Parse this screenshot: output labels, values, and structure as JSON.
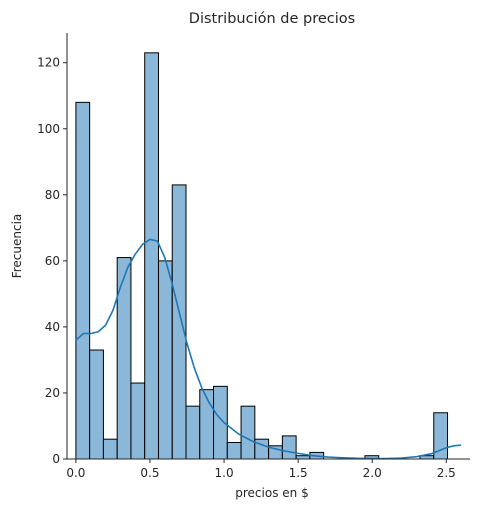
{
  "chart_data": {
    "type": "bar",
    "title": "Distribución de precios",
    "xlabel": "precios en $",
    "ylabel": "Frecuencia",
    "xlim": [
      -0.06,
      2.66
    ],
    "ylim": [
      0,
      129
    ],
    "xticks": [
      0.0,
      0.5,
      1.0,
      1.5,
      2.0,
      2.5
    ],
    "xtick_labels": [
      "0.0",
      "0.5",
      "1.0",
      "1.5",
      "2.0",
      "2.5"
    ],
    "yticks": [
      0,
      20,
      40,
      60,
      80,
      100,
      120
    ],
    "ytick_labels": [
      "0",
      "20",
      "40",
      "60",
      "80",
      "100",
      "120"
    ],
    "bins": {
      "start": 0.0,
      "width": 0.0929
    },
    "counts": [
      108,
      33,
      6,
      61,
      23,
      123,
      60,
      83,
      16,
      21,
      22,
      5,
      16,
      6,
      4,
      7,
      1,
      2,
      0,
      0,
      0,
      1,
      0,
      0,
      0,
      1,
      14
    ],
    "kde": {
      "x": [
        0.0,
        0.05,
        0.1,
        0.15,
        0.2,
        0.25,
        0.3,
        0.35,
        0.4,
        0.45,
        0.5,
        0.55,
        0.6,
        0.65,
        0.7,
        0.75,
        0.8,
        0.85,
        0.9,
        0.95,
        1.0,
        1.1,
        1.2,
        1.3,
        1.4,
        1.5,
        1.6,
        1.7,
        1.8,
        1.9,
        2.0,
        2.1,
        2.2,
        2.3,
        2.4,
        2.45,
        2.5,
        2.55,
        2.6
      ],
      "y": [
        36,
        38,
        38,
        38.5,
        40.5,
        45,
        52,
        58,
        62,
        65,
        66.5,
        66,
        61,
        53,
        44,
        35,
        27.5,
        21.5,
        17,
        13.5,
        11,
        7.5,
        5.2,
        3.6,
        2.5,
        1.7,
        1.0,
        0.6,
        0.35,
        0.2,
        0.15,
        0.15,
        0.3,
        0.7,
        1.6,
        2.5,
        3.4,
        4.0,
        4.2
      ]
    },
    "colors": {
      "bar_fill": "#8bb8d9",
      "bar_edge": "#000000",
      "kde_line": "#1f77b4"
    }
  }
}
